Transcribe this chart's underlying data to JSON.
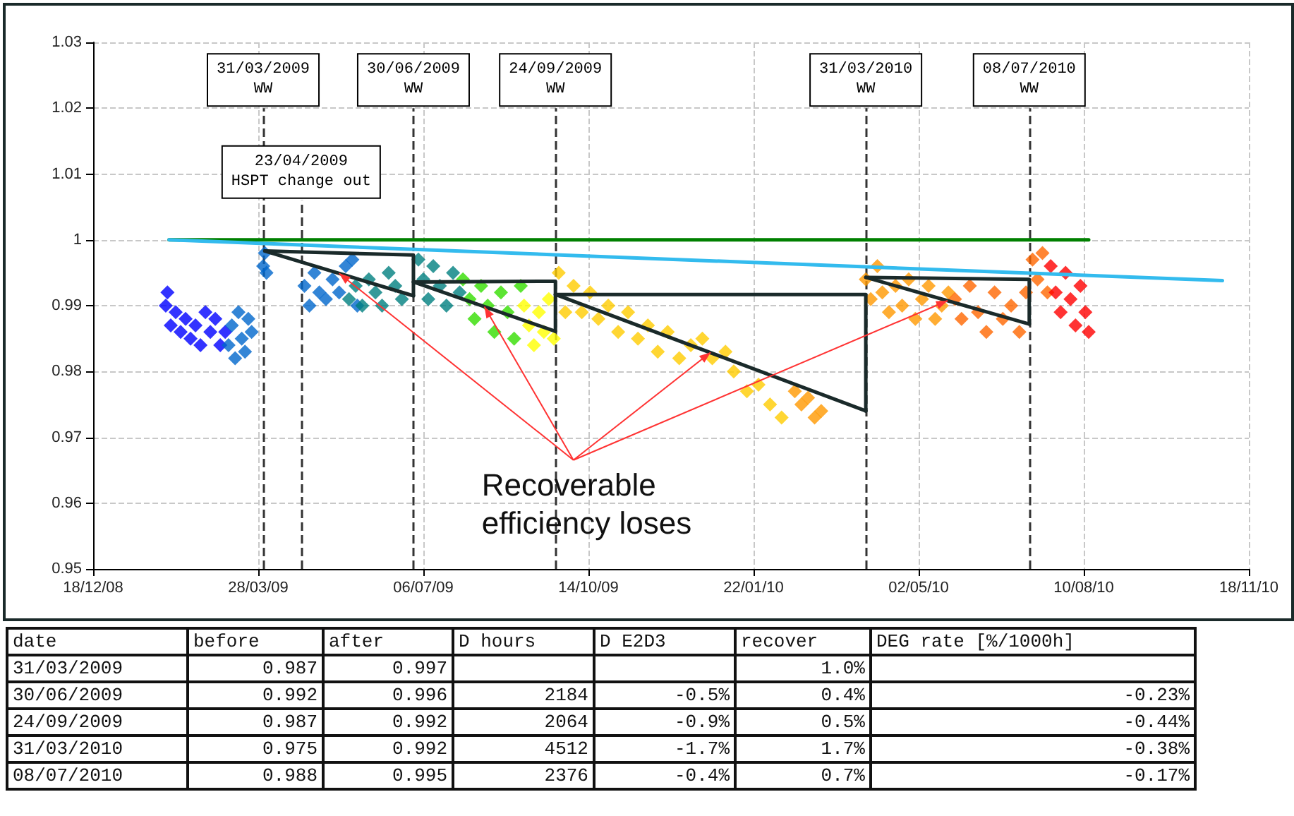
{
  "chart_data": [
    {
      "type": "scatter",
      "xlim": [
        "2008-12-18",
        "2010-11-18"
      ],
      "xticks": [
        {
          "value": "2008-12-18",
          "label": "18/12/08"
        },
        {
          "value": "2009-03-28",
          "label": "28/03/09"
        },
        {
          "value": "2009-07-06",
          "label": "06/07/09"
        },
        {
          "value": "2009-10-14",
          "label": "14/10/09"
        },
        {
          "value": "2010-01-22",
          "label": "22/01/10"
        },
        {
          "value": "2010-05-02",
          "label": "02/05/10"
        },
        {
          "value": "2010-08-10",
          "label": "10/08/10"
        },
        {
          "value": "2010-11-18",
          "label": "18/11/10"
        }
      ],
      "ylim": [
        0.95,
        1.03
      ],
      "yticks": [
        0.95,
        0.96,
        0.97,
        0.98,
        0.99,
        1,
        1.01,
        1.02,
        1.03
      ],
      "grid": true,
      "marker": "diamond",
      "series": [
        {
          "color": "#0000ff",
          "x": [
            "2009-01-31",
            "2009-02-01",
            "2009-02-03",
            "2009-02-06",
            "2009-02-09",
            "2009-02-12",
            "2009-02-15",
            "2009-02-18",
            "2009-02-21",
            "2009-02-24",
            "2009-02-27",
            "2009-03-02",
            "2009-03-05",
            "2009-03-08"
          ],
          "values": [
            0.99,
            0.992,
            0.987,
            0.989,
            0.986,
            0.988,
            0.985,
            0.987,
            0.984,
            0.989,
            0.986,
            0.988,
            0.984,
            0.986
          ]
        },
        {
          "color": "#0066cc",
          "x": [
            "2009-03-10",
            "2009-03-12",
            "2009-03-14",
            "2009-03-16",
            "2009-03-18",
            "2009-03-20",
            "2009-03-22",
            "2009-03-24",
            "2009-03-31",
            "2009-04-01",
            "2009-04-02",
            "2009-04-25",
            "2009-04-28",
            "2009-05-01",
            "2009-05-04",
            "2009-05-08",
            "2009-05-12",
            "2009-05-16",
            "2009-05-20",
            "2009-05-24",
            "2009-05-27"
          ],
          "values": [
            0.984,
            0.987,
            0.982,
            0.989,
            0.985,
            0.983,
            0.988,
            0.986,
            0.996,
            0.998,
            0.995,
            0.993,
            0.99,
            0.995,
            0.992,
            0.991,
            0.994,
            0.992,
            0.996,
            0.997,
            0.99
          ]
        },
        {
          "color": "#008080",
          "x": [
            "2009-05-22",
            "2009-05-26",
            "2009-05-30",
            "2009-06-03",
            "2009-06-07",
            "2009-06-11",
            "2009-06-15",
            "2009-06-19",
            "2009-06-23",
            "2009-07-03",
            "2009-07-06",
            "2009-07-09",
            "2009-07-12",
            "2009-07-16",
            "2009-07-20",
            "2009-07-24",
            "2009-07-28"
          ],
          "values": [
            0.991,
            0.993,
            0.99,
            0.994,
            0.992,
            0.99,
            0.995,
            0.993,
            0.991,
            0.997,
            0.994,
            0.991,
            0.996,
            0.993,
            0.99,
            0.995,
            0.992
          ]
        },
        {
          "color": "#33dd00",
          "x": [
            "2009-07-30",
            "2009-08-03",
            "2009-08-06",
            "2009-08-10",
            "2009-08-14",
            "2009-08-18",
            "2009-08-22",
            "2009-08-26",
            "2009-08-30",
            "2009-09-03"
          ],
          "values": [
            0.994,
            0.991,
            0.988,
            0.993,
            0.99,
            0.986,
            0.992,
            0.989,
            0.985,
            0.993
          ]
        },
        {
          "color": "#ffff00",
          "x": [
            "2009-09-05",
            "2009-09-08",
            "2009-09-11",
            "2009-09-14",
            "2009-09-17",
            "2009-09-20",
            "2009-09-23"
          ],
          "values": [
            0.99,
            0.987,
            0.984,
            0.989,
            0.986,
            0.991,
            0.985
          ]
        },
        {
          "color": "#ffcc00",
          "x": [
            "2009-09-26",
            "2009-09-30",
            "2009-10-05",
            "2009-10-10",
            "2009-10-15",
            "2009-10-20",
            "2009-10-26",
            "2009-11-01",
            "2009-11-07",
            "2009-11-13",
            "2009-11-19",
            "2009-11-25",
            "2009-12-01",
            "2009-12-08",
            "2009-12-15",
            "2009-12-22",
            "2009-12-28",
            "2010-01-05",
            "2010-01-10",
            "2010-01-18",
            "2010-01-25",
            "2010-02-01",
            "2010-02-08"
          ],
          "values": [
            0.995,
            0.989,
            0.993,
            0.989,
            0.992,
            0.988,
            0.99,
            0.986,
            0.989,
            0.985,
            0.987,
            0.983,
            0.986,
            0.982,
            0.984,
            0.985,
            0.982,
            0.983,
            0.98,
            0.977,
            0.978,
            0.975,
            0.973
          ]
        },
        {
          "color": "#ff9900",
          "x": [
            "2010-02-16",
            "2010-02-20",
            "2010-02-24",
            "2010-02-28",
            "2010-03-04",
            "2010-03-31",
            "2010-04-03",
            "2010-04-07",
            "2010-04-10",
            "2010-04-14",
            "2010-04-18",
            "2010-04-22",
            "2010-04-26",
            "2010-04-30",
            "2010-05-04",
            "2010-05-08",
            "2010-05-12",
            "2010-05-16",
            "2010-05-20"
          ],
          "values": [
            0.977,
            0.975,
            0.976,
            0.973,
            0.974,
            0.994,
            0.991,
            0.996,
            0.992,
            0.989,
            0.993,
            0.99,
            0.994,
            0.988,
            0.991,
            0.993,
            0.988,
            0.99,
            0.992
          ]
        },
        {
          "color": "#ff6600",
          "x": [
            "2010-05-24",
            "2010-05-28",
            "2010-06-02",
            "2010-06-07",
            "2010-06-12",
            "2010-06-17",
            "2010-06-22",
            "2010-06-27",
            "2010-07-02",
            "2010-07-06",
            "2010-07-10",
            "2010-07-13",
            "2010-07-16",
            "2010-07-19"
          ],
          "values": [
            0.991,
            0.988,
            0.993,
            0.989,
            0.986,
            0.992,
            0.988,
            0.99,
            0.986,
            0.992,
            0.997,
            0.994,
            0.998,
            0.992
          ]
        },
        {
          "color": "#ff0000",
          "x": [
            "2010-07-21",
            "2010-07-24",
            "2010-07-27",
            "2010-07-30",
            "2010-08-02",
            "2010-08-05",
            "2010-08-08",
            "2010-08-11",
            "2010-08-13"
          ],
          "values": [
            0.996,
            0.992,
            0.989,
            0.995,
            0.991,
            0.987,
            0.993,
            0.989,
            0.986
          ]
        },
        {
          "type": "line",
          "marker": "none",
          "color": "#008000",
          "x": [
            "2009-02-02",
            "2010-08-13"
          ],
          "values": [
            1,
            1
          ]
        },
        {
          "type": "line",
          "marker": "none",
          "color": "#33bbee",
          "x": [
            "2009-02-02",
            "2010-11-02"
          ],
          "values": [
            1,
            0.9938
          ]
        },
        {
          "type": "line",
          "marker": "none",
          "color": "#1a2a2a",
          "x": [
            "2009-04-01",
            "2009-06-30",
            "2009-06-30"
          ],
          "values": [
            0.9983,
            0.9977,
            0.9915
          ]
        },
        {
          "type": "line",
          "marker": "none",
          "color": "#1a2a2a",
          "x": [
            "2009-04-01",
            "2009-06-30"
          ],
          "values": [
            0.9983,
            0.9915
          ]
        },
        {
          "type": "line",
          "marker": "none",
          "color": "#1a2a2a",
          "x": [
            "2009-06-30",
            "2009-09-24",
            "2009-09-24"
          ],
          "values": [
            0.9936,
            0.9937,
            0.9861
          ]
        },
        {
          "type": "line",
          "marker": "none",
          "color": "#1a2a2a",
          "x": [
            "2009-06-30",
            "2009-09-24"
          ],
          "values": [
            0.9936,
            0.9861
          ]
        },
        {
          "type": "line",
          "marker": "none",
          "color": "#1a2a2a",
          "x": [
            "2009-09-24",
            "2010-03-31",
            "2010-03-31"
          ],
          "values": [
            0.9917,
            0.9917,
            0.974
          ]
        },
        {
          "type": "line",
          "marker": "none",
          "color": "#1a2a2a",
          "x": [
            "2009-09-24",
            "2010-03-31"
          ],
          "values": [
            0.9917,
            0.974
          ]
        },
        {
          "type": "line",
          "marker": "none",
          "color": "#1a2a2a",
          "x": [
            "2010-03-31",
            "2010-07-08",
            "2010-07-08"
          ],
          "values": [
            0.9943,
            0.994,
            0.9872
          ]
        },
        {
          "type": "line",
          "marker": "none",
          "color": "#1a2a2a",
          "x": [
            "2010-03-31",
            "2010-07-08"
          ],
          "values": [
            0.9943,
            0.9872
          ]
        }
      ],
      "ref_lines": [
        {
          "axis": "x",
          "value": "2009-03-31",
          "label": "31/03/2009\nWW",
          "color": "#333333",
          "line_style": "dashed"
        },
        {
          "axis": "x",
          "value": "2009-04-23",
          "label": "23/04/2009\nHSPT change out",
          "color": "#333333",
          "line_style": "dashed"
        },
        {
          "axis": "x",
          "value": "2009-06-30",
          "label": "30/06/2009\nWW",
          "color": "#333333",
          "line_style": "dashed"
        },
        {
          "axis": "x",
          "value": "2009-09-24",
          "label": "24/09/2009\nWW",
          "color": "#333333",
          "line_style": "dashed"
        },
        {
          "axis": "x",
          "value": "2010-03-31",
          "label": "31/03/2010\nWW",
          "color": "#333333",
          "line_style": "dashed"
        },
        {
          "axis": "x",
          "value": "2010-07-08",
          "label": "08/07/2010\nWW",
          "color": "#333333",
          "line_style": "dashed"
        }
      ],
      "annotations": [
        {
          "text": "Recoverable\nefficiency loses",
          "x": "2009-12-27",
          "y": 0.9829
        }
      ]
    },
    {
      "type": "other",
      "categories": [
        "date",
        "before",
        "after",
        "D hours",
        "D E2D3",
        "recover",
        "DEG rate [%/1000h]"
      ],
      "cell_labels": [
        [
          "31/03/2009",
          "0.987",
          "0.997",
          null,
          null,
          "1.0%",
          null
        ],
        [
          "30/06/2009",
          "0.992",
          "0.996",
          "2184",
          "-0.5%",
          "0.4%",
          "-0.23%"
        ],
        [
          "24/09/2009",
          "0.987",
          "0.992",
          "2064",
          "-0.9%",
          "0.5%",
          "-0.44%"
        ],
        [
          "31/03/2010",
          "0.975",
          "0.992",
          "4512",
          "-1.7%",
          "1.7%",
          "-0.38%"
        ],
        [
          "08/07/2010",
          "0.988",
          "0.995",
          "2376",
          "-0.4%",
          "0.7%",
          "-0.17%"
        ]
      ]
    }
  ]
}
